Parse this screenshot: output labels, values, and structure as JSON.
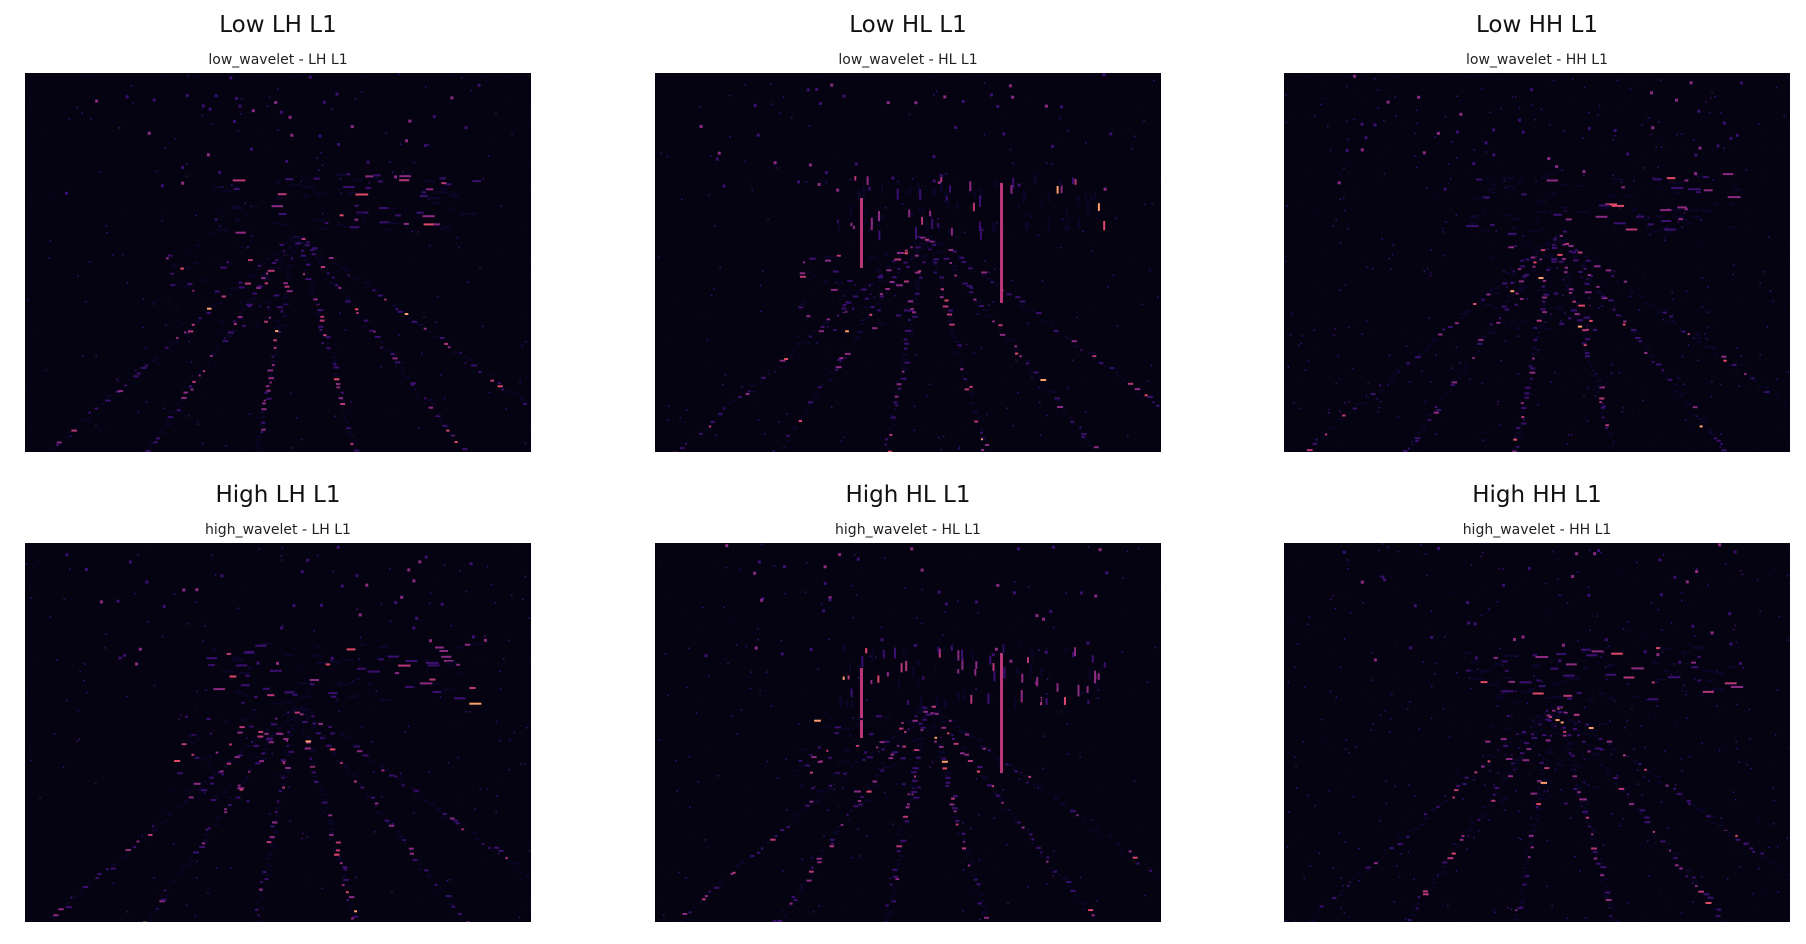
{
  "colormap": {
    "name": "magma",
    "background": "#050312",
    "stops": [
      "#0b0628",
      "#3b0f70",
      "#8c2981",
      "#b73779",
      "#de4968",
      "#fe9f6d",
      "#fcfdbf"
    ]
  },
  "panels": [
    {
      "title": "Low LH L1",
      "subtitle": "low_wavelet - LH L1",
      "band": "LH",
      "level": "L1",
      "source": "low_wavelet"
    },
    {
      "title": "Low HL L1",
      "subtitle": "low_wavelet - HL L1",
      "band": "HL",
      "level": "L1",
      "source": "low_wavelet"
    },
    {
      "title": "Low HH L1",
      "subtitle": "low_wavelet - HH L1",
      "band": "HH",
      "level": "L1",
      "source": "low_wavelet"
    },
    {
      "title": "High LH L1",
      "subtitle": "high_wavelet - LH L1",
      "band": "LH",
      "level": "L1",
      "source": "high_wavelet"
    },
    {
      "title": "High HL L1",
      "subtitle": "high_wavelet - HL L1",
      "band": "HL",
      "level": "L1",
      "source": "high_wavelet"
    },
    {
      "title": "High HH L1",
      "subtitle": "high_wavelet - HH L1",
      "band": "HH",
      "level": "L1",
      "source": "high_wavelet"
    }
  ]
}
